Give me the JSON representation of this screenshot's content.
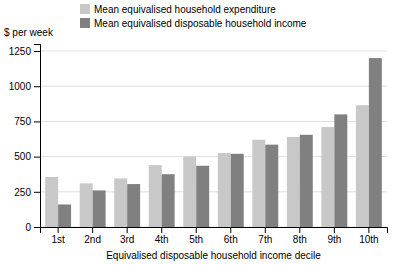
{
  "chart_data": {
    "type": "bar",
    "categories": [
      "1st",
      "2nd",
      "3rd",
      "4th",
      "5th",
      "6th",
      "7th",
      "8th",
      "9th",
      "10th"
    ],
    "series": [
      {
        "name": "Mean equivalised household expenditure",
        "color": "#c8c8c8",
        "values": [
          355,
          310,
          345,
          440,
          500,
          525,
          620,
          640,
          710,
          865
        ]
      },
      {
        "name": "Mean equivalised disposable household income",
        "color": "#808080",
        "values": [
          160,
          260,
          305,
          375,
          435,
          520,
          585,
          655,
          800,
          1200
        ]
      }
    ],
    "xlabel": "Equivalised disposable household income decile",
    "ylabel": "$ per week",
    "ylim": [
      0,
      1300
    ],
    "yticks": [
      0,
      250,
      500,
      750,
      1000,
      1250
    ],
    "grid": true,
    "legend": "upper left"
  }
}
